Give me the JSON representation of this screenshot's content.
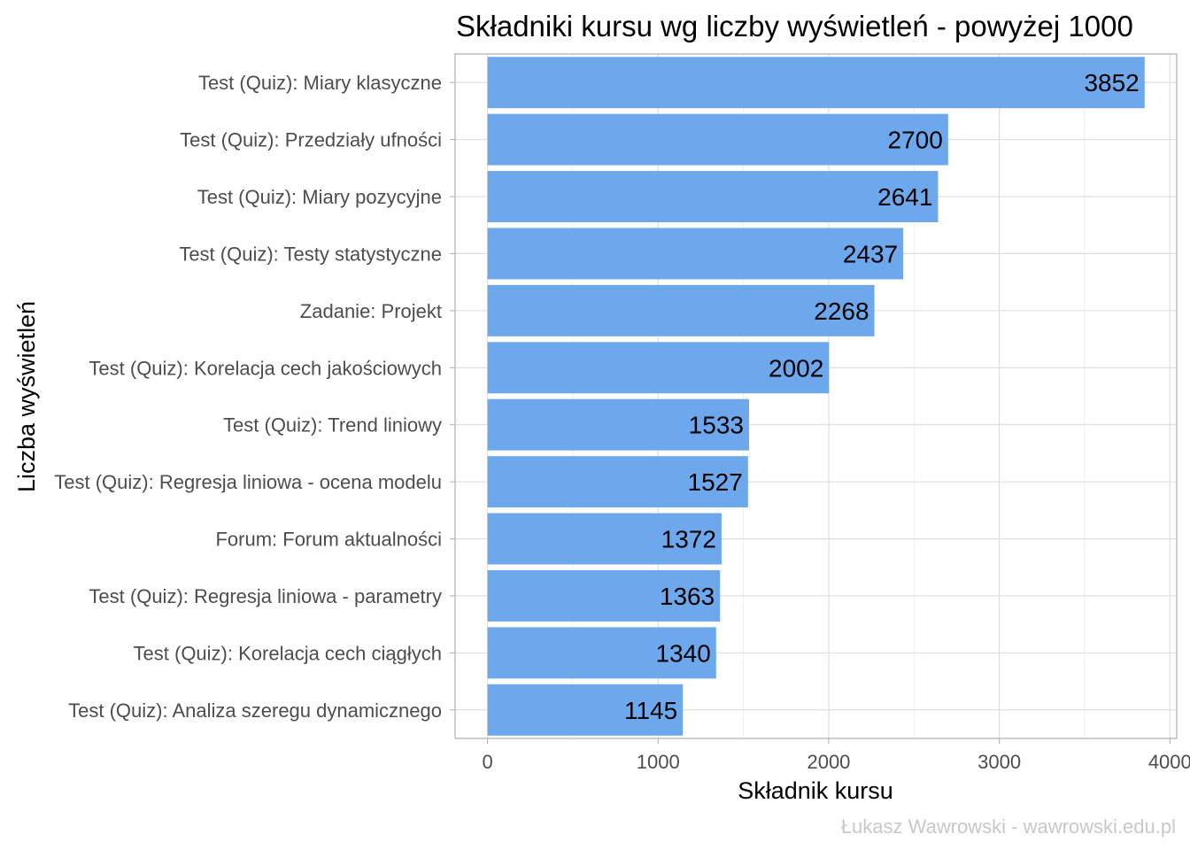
{
  "chart_data": {
    "type": "bar",
    "orientation": "horizontal",
    "title": "Składniki kursu wg liczby wyświetleń - powyżej 1000",
    "xlabel": "Składnik kursu",
    "ylabel": "Liczba wyświetleń",
    "caption": "Łukasz Wawrowski - wawrowski.edu.pl",
    "bar_color": "#6ea8ec",
    "xlim": [
      -190,
      4040
    ],
    "x_ticks": [
      0,
      1000,
      2000,
      3000,
      4000
    ],
    "grid": true,
    "categories": [
      "Test (Quiz): Miary klasyczne",
      "Test (Quiz): Przedziały ufności",
      "Test (Quiz): Miary pozycyjne",
      "Test (Quiz): Testy statystyczne",
      "Zadanie: Projekt",
      "Test (Quiz): Korelacja cech jakościowych",
      "Test (Quiz): Trend liniowy",
      "Test (Quiz): Regresja liniowa - ocena modelu",
      "Forum: Forum aktualności",
      "Test (Quiz): Regresja liniowa - parametry",
      "Test (Quiz): Korelacja cech ciągłych",
      "Test (Quiz): Analiza szeregu dynamicznego"
    ],
    "values": [
      3852,
      2700,
      2641,
      2437,
      2268,
      2002,
      1533,
      1527,
      1372,
      1363,
      1340,
      1145
    ]
  }
}
